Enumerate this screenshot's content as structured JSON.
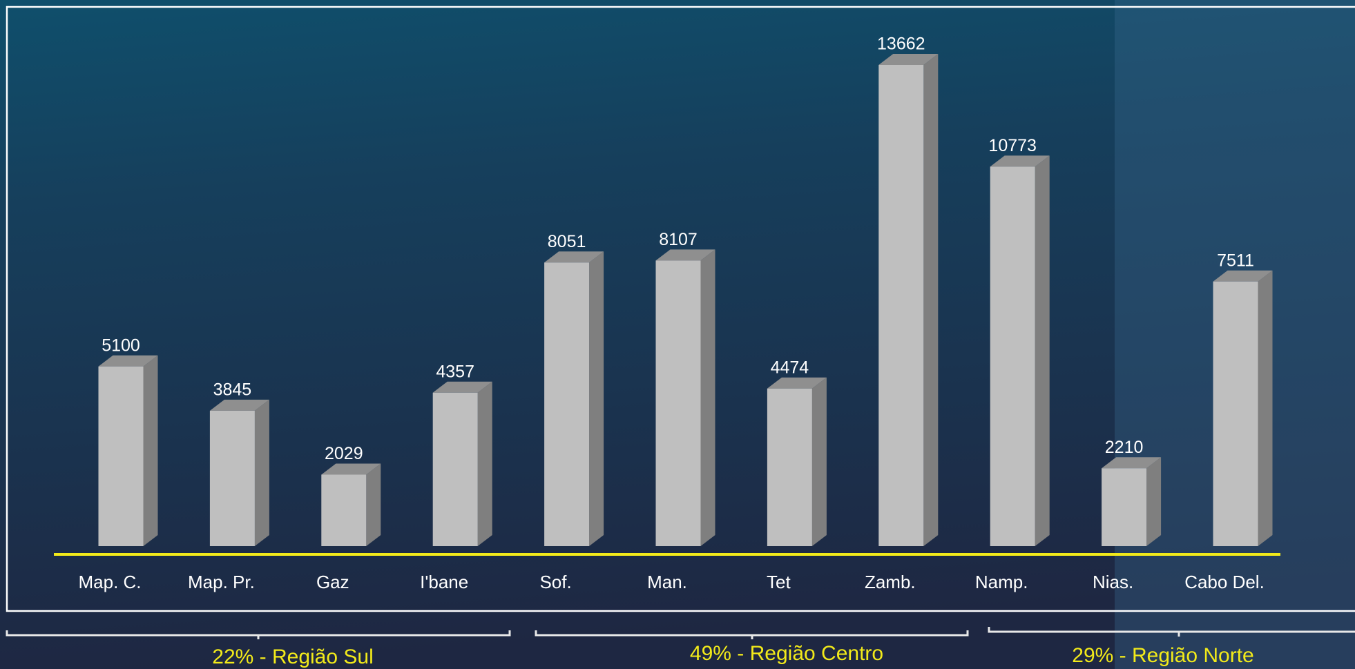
{
  "chart_data": {
    "type": "bar3d",
    "categories": [
      "Map. C.",
      "Map. Pr.",
      "Gaz",
      "I'bane",
      "Sof.",
      "Man.",
      "Tet",
      "Zamb.",
      "Namp.",
      "Nias.",
      "Cabo Del."
    ],
    "values": [
      5100,
      3845,
      2029,
      4357,
      8051,
      8107,
      4474,
      13662,
      10773,
      2210,
      7511
    ],
    "color": "#bfbfbf",
    "annotations": [
      "22% - Região  Sul",
      "49% - Região  Centro",
      "29% - Região  Norte"
    ]
  }
}
